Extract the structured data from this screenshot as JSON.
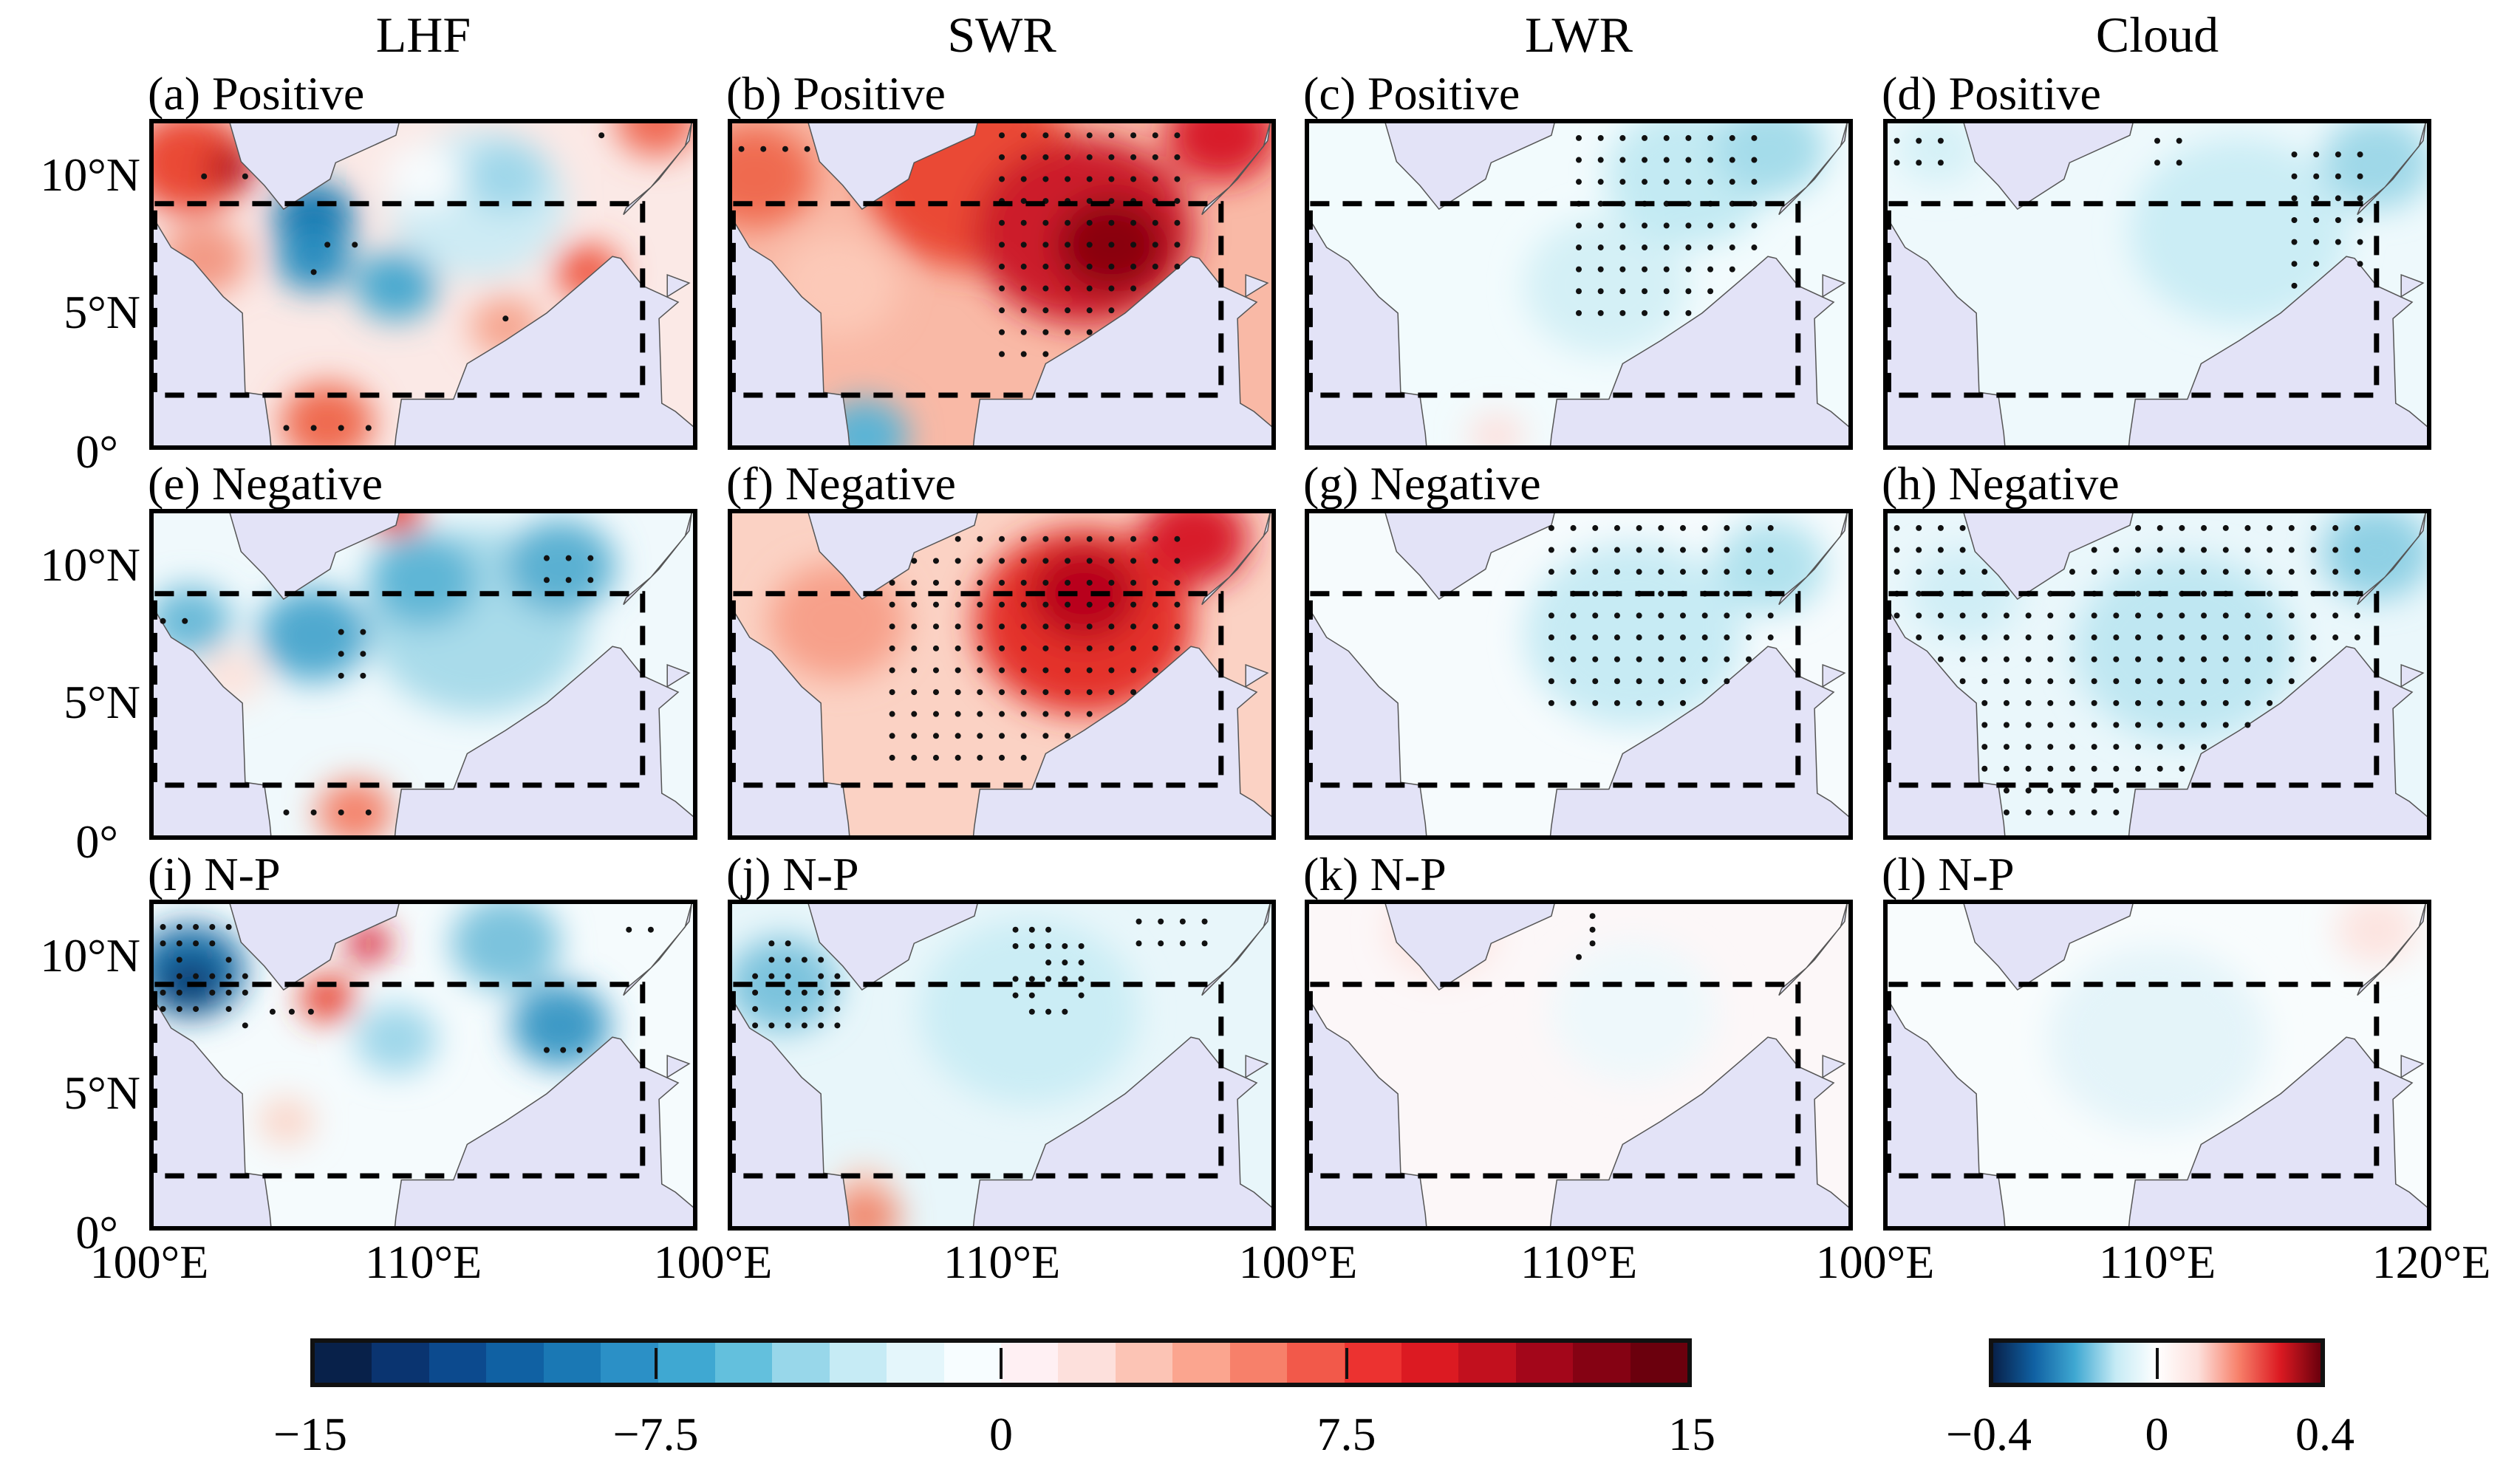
{
  "columns": [
    "LHF",
    "SWR",
    "LWR",
    "Cloud"
  ],
  "panels": [
    {
      "id": "a",
      "label": "(a) Positive",
      "variable": "LHF",
      "composite": "Positive"
    },
    {
      "id": "b",
      "label": "(b) Positive",
      "variable": "SWR",
      "composite": "Positive"
    },
    {
      "id": "c",
      "label": "(c) Positive",
      "variable": "LWR",
      "composite": "Positive"
    },
    {
      "id": "d",
      "label": "(d) Positive",
      "variable": "Cloud",
      "composite": "Positive"
    },
    {
      "id": "e",
      "label": "(e) Negative",
      "variable": "LHF",
      "composite": "Negative"
    },
    {
      "id": "f",
      "label": "(f) Negative",
      "variable": "SWR",
      "composite": "Negative"
    },
    {
      "id": "g",
      "label": "(g) Negative",
      "variable": "LWR",
      "composite": "Negative"
    },
    {
      "id": "h",
      "label": "(h) Negative",
      "variable": "Cloud",
      "composite": "Negative"
    },
    {
      "id": "i",
      "label": "(i) N-P",
      "variable": "LHF",
      "composite": "N-P"
    },
    {
      "id": "j",
      "label": "(j) N-P",
      "variable": "SWR",
      "composite": "N-P"
    },
    {
      "id": "k",
      "label": "(k) N-P",
      "variable": "LWR",
      "composite": "N-P"
    },
    {
      "id": "l",
      "label": "(l) N-P",
      "variable": "Cloud",
      "composite": "N-P"
    }
  ],
  "lat_ticks": [
    "10°N",
    "5°N",
    "0°"
  ],
  "lon_ticks": [
    "100°E",
    "110°E",
    "100°E",
    "110°E",
    "100°E",
    "110°E",
    "100°E",
    "110°E",
    "120°E"
  ],
  "map_extent": {
    "lon": [
      100,
      120
    ],
    "lat": [
      0,
      12
    ]
  },
  "box_region": {
    "lon": [
      100,
      118
    ],
    "lat": [
      2,
      9
    ]
  },
  "colorbar_flux": {
    "ticks": [
      "−15",
      "−7.5",
      "0",
      "7.5",
      "15"
    ],
    "tick_values": [
      -15,
      -7.5,
      0,
      7.5,
      15
    ],
    "range": [
      -15,
      15
    ],
    "colors": [
      "#08214a",
      "#0a3470",
      "#0c4a8e",
      "#1061a3",
      "#1a78b4",
      "#2b90c6",
      "#3fa8d2",
      "#63c0dd",
      "#98d7ea",
      "#c6ebf5",
      "#e4f6fb",
      "#f7fdff",
      "#fff0f3",
      "#fde0dc",
      "#fcc4b5",
      "#fba58f",
      "#f7806a",
      "#f2594a",
      "#ec3230",
      "#dc1a22",
      "#c2101e",
      "#a3061a",
      "#850213",
      "#6b000d"
    ]
  },
  "colorbar_cloud": {
    "ticks": [
      "−0.4",
      "0",
      "0.4"
    ],
    "tick_values": [
      -0.4,
      0,
      0.4
    ],
    "range": [
      -0.4,
      0.4
    ]
  }
}
